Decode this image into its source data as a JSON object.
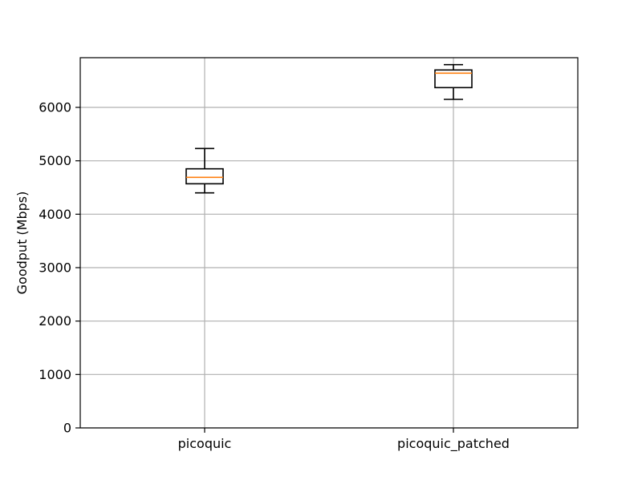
{
  "chart_data": {
    "type": "box",
    "title": "",
    "xlabel": "",
    "ylabel": "Goodput (Mbps)",
    "ylim": [
      0,
      6930
    ],
    "yticks": [
      0,
      1000,
      2000,
      3000,
      4000,
      5000,
      6000
    ],
    "grid": true,
    "categories": [
      "picoquic",
      "picoquic_patched"
    ],
    "boxes": [
      {
        "label": "picoquic",
        "whisker_low": 4400,
        "q1": 4570,
        "median": 4690,
        "q3": 4850,
        "whisker_high": 5230
      },
      {
        "label": "picoquic_patched",
        "whisker_low": 6150,
        "q1": 6370,
        "median": 6640,
        "q3": 6700,
        "whisker_high": 6800
      }
    ],
    "colors": {
      "median": "#ff7f0e",
      "box": "#000000",
      "grid": "#b0b0b0"
    }
  }
}
